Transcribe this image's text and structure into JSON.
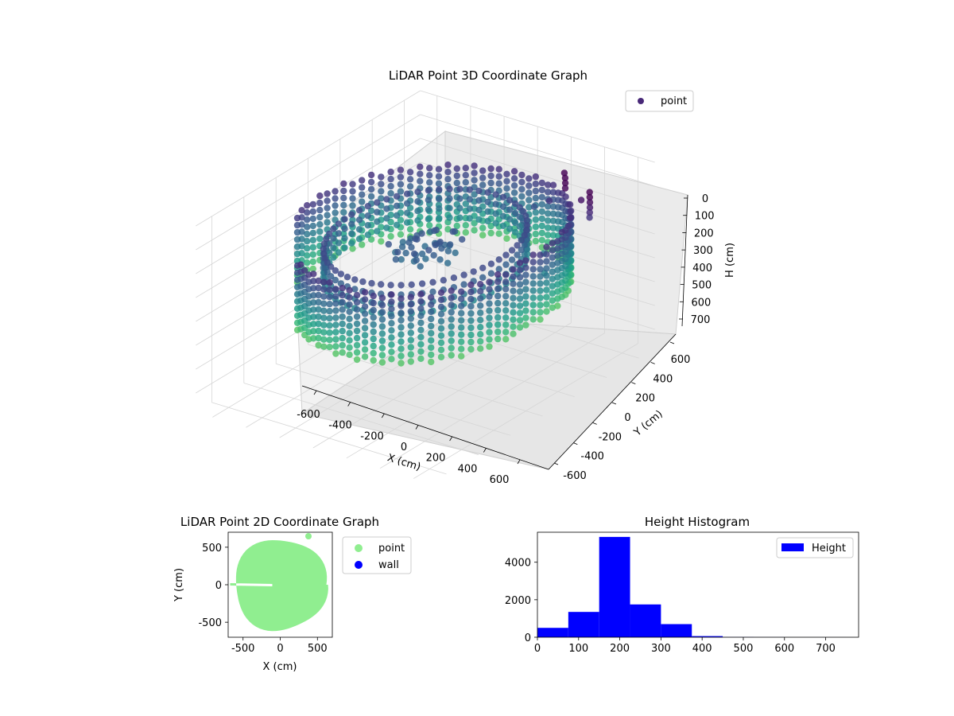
{
  "chart_data": [
    {
      "type": "scatter",
      "title": "LiDAR Point 3D Coordinate Graph",
      "xlabel": "X (cm)",
      "ylabel": "Y (cm)",
      "zlabel": "H (cm)",
      "xlim": [
        -700,
        700
      ],
      "ylim": [
        -700,
        700
      ],
      "zlim": [
        0,
        780
      ],
      "z_inverted": true,
      "xticks": [
        -600,
        -400,
        -200,
        0,
        200,
        400,
        600
      ],
      "yticks": [
        -600,
        -400,
        -200,
        0,
        200,
        400,
        600
      ],
      "zticks": [
        0,
        100,
        200,
        300,
        400,
        500,
        600,
        700
      ],
      "colormap": "viridis",
      "legend": {
        "entries": [
          "point"
        ],
        "placement": "top-right",
        "color": "#482878"
      },
      "series": [
        {
          "name": "point",
          "points": [
            [
              380,
              470,
              20
            ],
            [
              385,
              470,
              40
            ],
            [
              388,
              468,
              60
            ],
            [
              390,
              465,
              80
            ],
            [
              560,
              440,
              50
            ],
            [
              562,
              438,
              70
            ],
            [
              565,
              436,
              90
            ],
            [
              567,
              434,
              110
            ],
            [
              568,
              432,
              130
            ],
            [
              569,
              430,
              150
            ],
            [
              500,
              450,
              100
            ],
            [
              300,
              460,
              150
            ],
            [
              200,
              470,
              200
            ],
            [
              420,
              300,
              280
            ],
            [
              520,
              200,
              300
            ],
            [
              100,
              50,
              210
            ],
            [
              60,
              30,
              200
            ],
            [
              -50,
              0,
              200
            ],
            [
              20,
              -40,
              230
            ]
          ],
          "note": "dense rings of wall points at radius ~600 cm, heights ~150-420 cm"
        }
      ],
      "grid": true
    },
    {
      "type": "scatter",
      "title": "LiDAR Point 2D Coordinate Graph",
      "xlabel": "X (cm)",
      "ylabel": "Y (cm)",
      "xlim": [
        -700,
        700
      ],
      "ylim": [
        -700,
        700
      ],
      "xticks": [
        -500,
        0,
        500
      ],
      "yticks": [
        -500,
        0,
        500
      ],
      "legend": {
        "entries": [
          "point",
          "wall"
        ],
        "placement": "outside-right"
      },
      "series": [
        {
          "name": "point",
          "color": "#90ee90",
          "shape": "disk",
          "center": [
            0,
            0
          ],
          "radius": 620
        },
        {
          "name": "wall",
          "color": "#0000ff"
        }
      ]
    },
    {
      "type": "bar",
      "title": "Height Histogram",
      "xlim": [
        0,
        780
      ],
      "ylim": [
        0,
        5600
      ],
      "xticks": [
        0,
        100,
        200,
        300,
        400,
        500,
        600,
        700
      ],
      "yticks": [
        0,
        2000,
        4000
      ],
      "legend": {
        "entries": [
          "Height"
        ],
        "placement": "top-right"
      },
      "series": [
        {
          "name": "Height",
          "color": "#0000ff",
          "bins": [
            0,
            75,
            150,
            225,
            300,
            375,
            450,
            525,
            600,
            675,
            750
          ],
          "values": [
            500,
            1350,
            5350,
            1750,
            700,
            60,
            10,
            5,
            3,
            2
          ]
        }
      ]
    }
  ]
}
